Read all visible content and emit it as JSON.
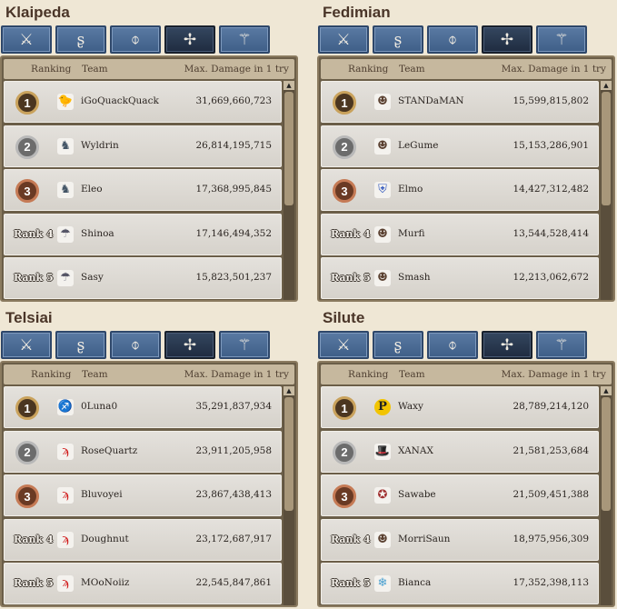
{
  "header": {
    "ranking": "Ranking",
    "team": "Team",
    "damage": "Max. Damage in 1 try"
  },
  "tabs": [
    {
      "icon": "sword-icon",
      "glyph": "⚔"
    },
    {
      "icon": "wizard-staff-icon",
      "glyph": "ʂ"
    },
    {
      "icon": "bow-icon",
      "glyph": "⌽"
    },
    {
      "icon": "cleric-cross-icon",
      "glyph": "✢"
    },
    {
      "icon": "scout-blades-icon",
      "glyph": "⚚"
    }
  ],
  "selected_tab": 3,
  "rank_labels": [
    "1",
    "2",
    "3",
    "Rank 4",
    "Rank 5"
  ],
  "panels": [
    {
      "title": "Klaipeda",
      "rows": [
        {
          "team": "iGoQuackQuack",
          "damage": "31,669,660,723",
          "icon": "duck-sunglasses-icon",
          "glyph": "🐤"
        },
        {
          "team": "Wyldrin",
          "damage": "26,814,195,715",
          "icon": "knight-icon",
          "glyph": "♞"
        },
        {
          "team": "Eleo",
          "damage": "17,368,995,845",
          "icon": "knight-icon",
          "glyph": "♞"
        },
        {
          "team": "Shinoa",
          "damage": "17,146,494,352",
          "icon": "mushroom-icon",
          "glyph": "☂"
        },
        {
          "team": "Sasy",
          "damage": "15,823,501,237",
          "icon": "mushroom-icon",
          "glyph": "☂"
        }
      ]
    },
    {
      "title": "Fedimian",
      "rows": [
        {
          "team": "STANDaMAN",
          "damage": "15,599,815,802",
          "icon": "portrait-icon",
          "glyph": "☻"
        },
        {
          "team": "LeGume",
          "damage": "15,153,286,901",
          "icon": "portrait-icon",
          "glyph": "☻"
        },
        {
          "team": "Elmo",
          "damage": "14,427,312,482",
          "icon": "shield-icon",
          "glyph": "⛨"
        },
        {
          "team": "Murfi",
          "damage": "13,544,528,414",
          "icon": "portrait-icon",
          "glyph": "☻"
        },
        {
          "team": "Smash",
          "damage": "12,213,062,672",
          "icon": "portrait-icon",
          "glyph": "☻"
        }
      ]
    },
    {
      "title": "Telsiai",
      "rows": [
        {
          "team": "0Luna0",
          "damage": "35,291,837,934",
          "icon": "purple-figure-icon",
          "glyph": "♐"
        },
        {
          "team": "RoseQuartz",
          "damage": "23,911,205,958",
          "icon": "red-bird-icon",
          "glyph": "ϡ"
        },
        {
          "team": "Bluvoyei",
          "damage": "23,867,438,413",
          "icon": "red-bird-icon",
          "glyph": "ϡ"
        },
        {
          "team": "Doughnut",
          "damage": "23,172,687,917",
          "icon": "red-bird-icon",
          "glyph": "ϡ"
        },
        {
          "team": "MOoNoiiz",
          "damage": "22,545,847,861",
          "icon": "red-bird-icon",
          "glyph": "ϡ"
        }
      ]
    },
    {
      "title": "Silute",
      "rows": [
        {
          "team": "Waxy",
          "damage": "28,789,214,120",
          "icon": "p-coin-icon",
          "glyph": "P"
        },
        {
          "team": "XANAX",
          "damage": "21,581,253,684",
          "icon": "hat-icon",
          "glyph": "🎩"
        },
        {
          "team": "Sawabe",
          "damage": "21,509,451,388",
          "icon": "crest-icon",
          "glyph": "✪"
        },
        {
          "team": "MorriSaun",
          "damage": "18,975,956,309",
          "icon": "portrait-icon",
          "glyph": "☻"
        },
        {
          "team": "Bianca",
          "damage": "17,352,398,113",
          "icon": "snowflake-icon",
          "glyph": "❄"
        }
      ]
    }
  ]
}
